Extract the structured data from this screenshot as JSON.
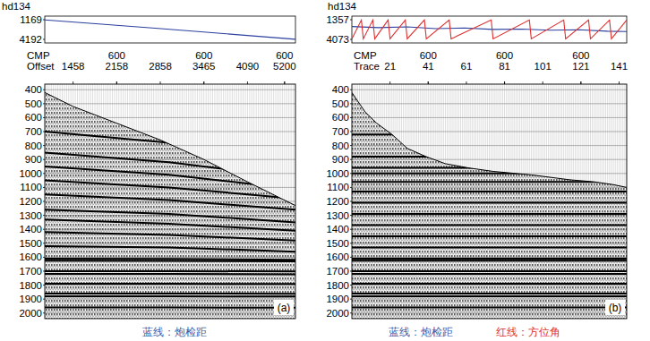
{
  "chart_data": [
    {
      "type": "seismic",
      "panel_label": "(a)",
      "header": {
        "title": "hd134",
        "ylim": [
          1169,
          4192
        ],
        "yticks": [
          1169,
          4192
        ],
        "series": [
          {
            "color": "#2b3f9e",
            "x": [
              8,
              30,
              60,
              90,
              123
            ],
            "values": [
              1200,
              1750,
              2500,
              3300,
              4180
            ]
          }
        ]
      },
      "xlim": [
        8,
        123
      ],
      "ylim": [
        360,
        2040
      ],
      "yticks": [
        400,
        500,
        600,
        700,
        800,
        900,
        1000,
        1100,
        1200,
        1300,
        1400,
        1500,
        1600,
        1700,
        1800,
        1900,
        2000
      ],
      "grid": true,
      "xlabel_rows": [
        {
          "label": "CMP",
          "ticks": [
            {
              "value": 41,
              "label": "600"
            },
            {
              "value": 81,
              "label": "600"
            },
            {
              "value": 118,
              "label": "600"
            }
          ]
        },
        {
          "label": "Offset",
          "ticks": [
            {
              "value": 21,
              "label": "1458"
            },
            {
              "value": 41,
              "label": "2158"
            },
            {
              "value": 61,
              "label": "2858"
            },
            {
              "value": 81,
              "label": "3465"
            },
            {
              "value": 101,
              "label": "4090"
            },
            {
              "value": 118,
              "label": "5200"
            }
          ]
        }
      ],
      "mute": {
        "x": [
          8,
          21,
          41,
          61,
          81,
          101,
          123
        ],
        "y": [
          420,
          520,
          640,
          760,
          900,
          1060,
          1230
        ]
      },
      "events": [
        {
          "x": [
            8,
            65,
            123
          ],
          "y": [
            700,
            780,
            900
          ]
        },
        {
          "x": [
            8,
            65,
            123
          ],
          "y": [
            850,
            920,
            1030
          ]
        },
        {
          "x": [
            8,
            65,
            123
          ],
          "y": [
            950,
            1010,
            1110
          ]
        },
        {
          "x": [
            8,
            65,
            123
          ],
          "y": [
            1050,
            1100,
            1180
          ]
        },
        {
          "x": [
            8,
            65,
            123
          ],
          "y": [
            1150,
            1190,
            1260
          ]
        },
        {
          "x": [
            8,
            65,
            123
          ],
          "y": [
            1260,
            1290,
            1350
          ]
        },
        {
          "x": [
            8,
            65,
            123
          ],
          "y": [
            1330,
            1360,
            1410
          ]
        },
        {
          "x": [
            8,
            65,
            123
          ],
          "y": [
            1420,
            1440,
            1480
          ]
        },
        {
          "x": [
            8,
            65,
            123
          ],
          "y": [
            1520,
            1530,
            1560
          ]
        },
        {
          "x": [
            8,
            65,
            123
          ],
          "y": [
            1610,
            1612,
            1618
          ]
        },
        {
          "x": [
            8,
            65,
            123
          ],
          "y": [
            1625,
            1627,
            1630
          ]
        },
        {
          "x": [
            8,
            65,
            123
          ],
          "y": [
            1700,
            1700,
            1702
          ]
        },
        {
          "x": [
            8,
            65,
            123
          ],
          "y": [
            1720,
            1720,
            1722
          ]
        },
        {
          "x": [
            8,
            65,
            123
          ],
          "y": [
            1790,
            1790,
            1792
          ]
        },
        {
          "x": [
            8,
            65,
            123
          ],
          "y": [
            1860,
            1860,
            1862
          ]
        },
        {
          "x": [
            8,
            65,
            123
          ],
          "y": [
            1880,
            1880,
            1882
          ]
        },
        {
          "x": [
            8,
            65,
            123
          ],
          "y": [
            1960,
            1960,
            1962
          ]
        }
      ],
      "captions": [
        {
          "text": "蓝线：炮检距",
          "color": "#3c5ba8"
        }
      ]
    },
    {
      "type": "seismic",
      "panel_label": "(b)",
      "header": {
        "title": "hd134",
        "ylim": [
          1357,
          4073
        ],
        "yticks": [
          1357,
          4073
        ],
        "series": [
          {
            "color": "#2b3f9e",
            "x": [
              1,
              15,
              30,
              45,
              60,
              75,
              90,
              105,
              120,
              135,
              145
            ],
            "values": [
              2300,
              2450,
              2350,
              2600,
              2500,
              2700,
              2650,
              2800,
              2750,
              2950,
              3000
            ]
          },
          {
            "color": "#e03030",
            "x": [
              1,
              6,
              7,
              12,
              13,
              20,
              21,
              29,
              30,
              39,
              40,
              52,
              53,
              74,
              75,
              94,
              95,
              112,
              113,
              125,
              126,
              136,
              137,
              145
            ],
            "values": [
              4000,
              1400,
              4000,
              1400,
              4000,
              1400,
              4000,
              1400,
              4000,
              1400,
              4000,
              1400,
              4000,
              1400,
              4000,
              1400,
              4000,
              1400,
              4000,
              1400,
              4000,
              1400,
              4000,
              1400
            ]
          }
        ]
      },
      "xlim": [
        1,
        145
      ],
      "ylim": [
        360,
        2040
      ],
      "yticks": [
        400,
        500,
        600,
        700,
        800,
        900,
        1000,
        1100,
        1200,
        1300,
        1400,
        1500,
        1600,
        1700,
        1800,
        1900,
        2000
      ],
      "grid": true,
      "xlabel_rows": [
        {
          "label": "CMP",
          "ticks": [
            {
              "value": 41,
              "label": "600"
            },
            {
              "value": 81,
              "label": "600"
            },
            {
              "value": 121,
              "label": "600"
            }
          ]
        },
        {
          "label": "Trace",
          "ticks": [
            21,
            41,
            61,
            81,
            101,
            121,
            141
          ]
        }
      ],
      "mute": {
        "x": [
          1,
          8,
          14,
          22,
          30,
          40,
          50,
          62,
          75,
          95,
          115,
          128,
          138,
          145
        ],
        "y": [
          420,
          560,
          640,
          720,
          820,
          880,
          930,
          960,
          985,
          1010,
          1045,
          1060,
          1080,
          1100
        ]
      },
      "events": [
        {
          "x": [
            1,
            145
          ],
          "y": [
            720,
            720
          ]
        },
        {
          "x": [
            1,
            145
          ],
          "y": [
            880,
            880
          ]
        },
        {
          "x": [
            1,
            145
          ],
          "y": [
            960,
            960
          ]
        },
        {
          "x": [
            1,
            145
          ],
          "y": [
            1000,
            1000
          ]
        },
        {
          "x": [
            1,
            145
          ],
          "y": [
            1060,
            1060
          ]
        },
        {
          "x": [
            1,
            145
          ],
          "y": [
            1130,
            1130
          ]
        },
        {
          "x": [
            1,
            145
          ],
          "y": [
            1210,
            1210
          ]
        },
        {
          "x": [
            1,
            145
          ],
          "y": [
            1290,
            1290
          ]
        },
        {
          "x": [
            1,
            145
          ],
          "y": [
            1370,
            1370
          ]
        },
        {
          "x": [
            1,
            145
          ],
          "y": [
            1450,
            1450
          ]
        },
        {
          "x": [
            1,
            145
          ],
          "y": [
            1530,
            1530
          ]
        },
        {
          "x": [
            1,
            145
          ],
          "y": [
            1610,
            1610
          ]
        },
        {
          "x": [
            1,
            145
          ],
          "y": [
            1625,
            1625
          ]
        },
        {
          "x": [
            1,
            145
          ],
          "y": [
            1700,
            1700
          ]
        },
        {
          "x": [
            1,
            145
          ],
          "y": [
            1720,
            1720
          ]
        },
        {
          "x": [
            1,
            145
          ],
          "y": [
            1790,
            1790
          ]
        },
        {
          "x": [
            1,
            145
          ],
          "y": [
            1860,
            1860
          ]
        },
        {
          "x": [
            1,
            145
          ],
          "y": [
            1880,
            1880
          ]
        },
        {
          "x": [
            1,
            145
          ],
          "y": [
            1960,
            1960
          ]
        }
      ],
      "captions": [
        {
          "text": "蓝线：炮检距",
          "color": "#3c5ba8"
        },
        {
          "text": "红线：方位角",
          "color": "#e03030"
        }
      ]
    }
  ]
}
